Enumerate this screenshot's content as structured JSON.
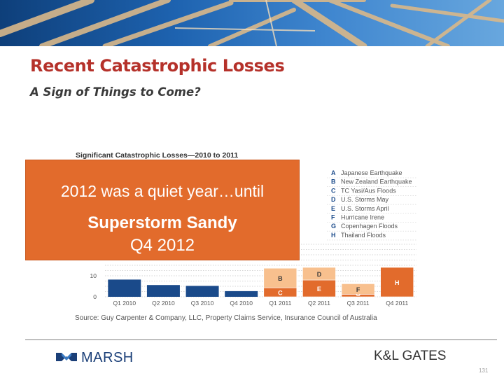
{
  "slide": {
    "title": "Recent Catastrophic Losses",
    "subtitle": "A Sign of Things to Come?"
  },
  "callout": {
    "line1": "2012 was a quiet year…until",
    "line2": "Superstorm Sandy",
    "line3": "Q4 2012",
    "color": "#e26b2c"
  },
  "chart_data": {
    "type": "bar",
    "title": "Significant Catastrophic Losses—2010 to 2011",
    "categories": [
      "Q1 2010",
      "Q2 2010",
      "Q3 2010",
      "Q4 2010",
      "Q1 2011",
      "Q2 2011",
      "Q3 2011",
      "Q4 2011"
    ],
    "yticks": [
      0,
      10
    ],
    "ylim": [
      0,
      25
    ],
    "xlabel": "",
    "ylabel": "",
    "grid": "horizontal dotted",
    "legend_position": "top-right",
    "colors": {
      "base": "#1a4a8a",
      "dark_orange": "#e26b2c",
      "light_orange": "#f8c08e"
    },
    "base_values": [
      8.2,
      5.6,
      5.2,
      2.7,
      0,
      0,
      0,
      0
    ],
    "stacks": [
      {
        "category": "Q1 2011",
        "label": "C",
        "value": 4.3,
        "shade": "dark_orange"
      },
      {
        "category": "Q1 2011",
        "label": "B",
        "value": 9.3,
        "shade": "light_orange"
      },
      {
        "category": "Q2 2011",
        "label": "E",
        "value": 8.0,
        "shade": "dark_orange"
      },
      {
        "category": "Q2 2011",
        "label": "D",
        "value": 6.0,
        "shade": "light_orange"
      },
      {
        "category": "Q3 2011",
        "label": "G",
        "value": 1.2,
        "shade": "dark_orange"
      },
      {
        "category": "Q3 2011",
        "label": "F",
        "value": 5.0,
        "shade": "light_orange"
      },
      {
        "category": "Q4 2011",
        "label": "H",
        "value": 14.0,
        "shade": "dark_orange"
      }
    ],
    "legend": [
      {
        "key": "A",
        "label": "Japanese Earthquake"
      },
      {
        "key": "B",
        "label": "New Zealand Earthquake"
      },
      {
        "key": "C",
        "label": "TC Yasi/Aus Floods"
      },
      {
        "key": "D",
        "label": "U.S. Storms May"
      },
      {
        "key": "E",
        "label": "U.S. Storms April"
      },
      {
        "key": "F",
        "label": "Hurricane Irene"
      },
      {
        "key": "G",
        "label": "Copenhagen Floods"
      },
      {
        "key": "H",
        "label": "Thailand Floods"
      }
    ],
    "source": "Source: Guy Carpenter & Company, LLC, Property Claims Service, Insurance Council of Australia"
  },
  "footer": {
    "marsh_logo": "MARSH",
    "klgates_logo": "K&L GATES",
    "page_number": "131"
  }
}
